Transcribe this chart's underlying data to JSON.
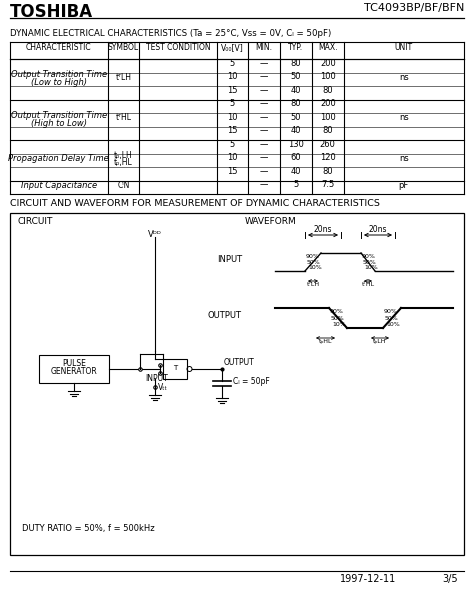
{
  "title_left": "TOSHIBA",
  "title_right": "TC4093BP/BF/BFN",
  "section1_title": "DYNAMIC ELECTRICAL CHARACTERISTICS (Ta = 25°C, Vss = 0V, Cₗ = 50pF)",
  "section2_title": "CIRCUIT AND WAVEFORM FOR MEASUREMENT OF DYNAMIC CHARACTERISTICS",
  "footer_date": "1997-12-11",
  "footer_page": "3/5",
  "group_chars": [
    "Output Transition Time\n(Low to High)",
    "Output Transition Time\n(High to Low)",
    "Propagation Delay Time",
    "Input Capacitance"
  ],
  "group_symbols": [
    "tᵀLH",
    "tᵀHL",
    "tₚ,LH\ntₚ,HL",
    "CᴵN"
  ],
  "group_sizes": [
    3,
    3,
    3,
    1
  ],
  "row_vdd": [
    "5",
    "10",
    "15",
    "5",
    "10",
    "15",
    "5",
    "10",
    "15",
    ""
  ],
  "row_min": [
    "—",
    "—",
    "—",
    "—",
    "—",
    "—",
    "—",
    "—",
    "—",
    "—"
  ],
  "row_typ": [
    "80",
    "50",
    "40",
    "80",
    "50",
    "40",
    "130",
    "60",
    "40",
    "5"
  ],
  "row_max": [
    "200",
    "100",
    "80",
    "200",
    "100",
    "80",
    "260",
    "120",
    "80",
    "7.5"
  ],
  "unit_per_group": [
    "ns",
    "ns",
    "ns",
    "pF"
  ],
  "bg_color": "#ffffff"
}
